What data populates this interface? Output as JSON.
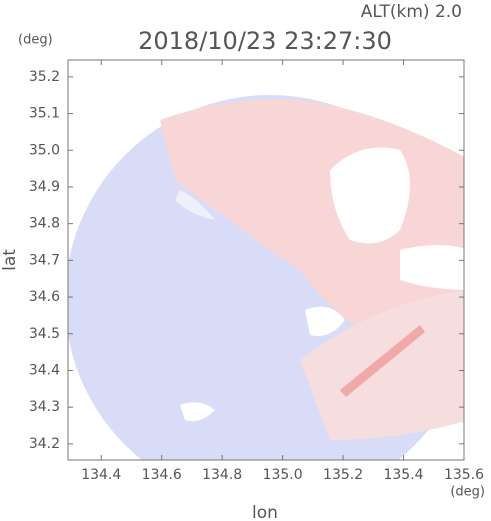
{
  "chart_data": {
    "type": "map",
    "annotation": "ALT(km) 2.0",
    "title": "2018/10/23 23:27:30",
    "x_label": "lon",
    "x_unit": "(deg)",
    "y_label": "lat",
    "y_unit": "(deg)",
    "xlim": [
      134.29,
      135.6
    ],
    "ylim": [
      34.156,
      35.246
    ],
    "xticks": [
      134.4,
      134.6,
      134.8,
      {
        "value": 135,
        "label": "135.0"
      },
      135.2,
      135.4,
      135.6
    ],
    "yticks": [
      34.2,
      34.3,
      34.4,
      34.5,
      34.6,
      34.7,
      34.8,
      34.9,
      {
        "value": 35,
        "label": "35.0"
      },
      35.1,
      35.2
    ]
  }
}
